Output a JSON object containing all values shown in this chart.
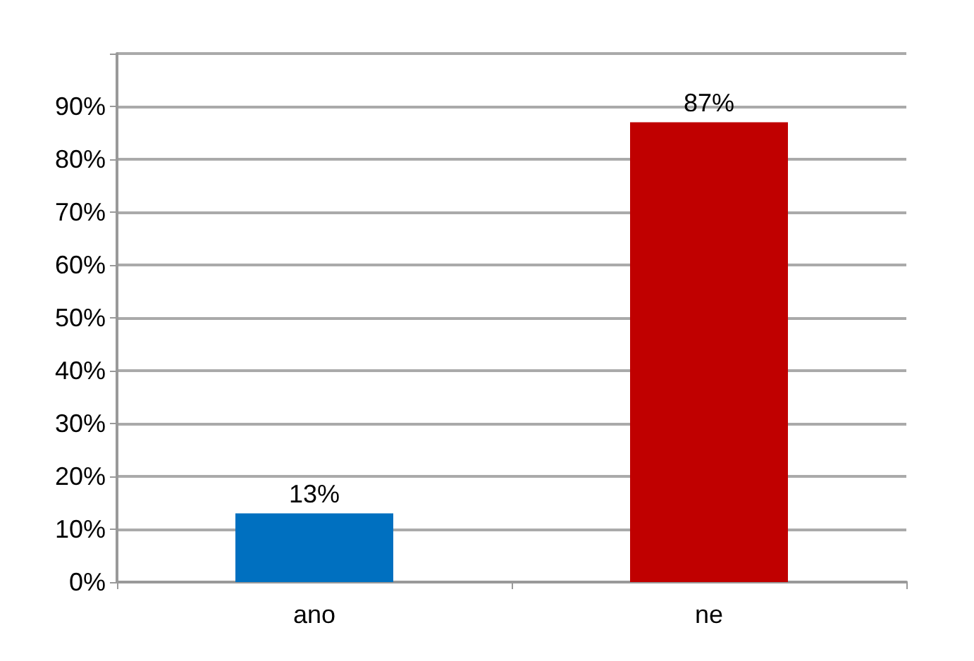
{
  "chart_data": {
    "type": "bar",
    "categories": [
      "ano",
      "ne"
    ],
    "values": [
      13,
      87
    ],
    "colors": [
      "#0070c0",
      "#c00000"
    ],
    "value_labels": [
      "13%",
      "87%"
    ],
    "ylim": [
      0,
      100
    ],
    "yticks": [
      {
        "value": 0,
        "label": "0%"
      },
      {
        "value": 10,
        "label": "10%"
      },
      {
        "value": 20,
        "label": "20%"
      },
      {
        "value": 30,
        "label": "30%"
      },
      {
        "value": 40,
        "label": "40%"
      },
      {
        "value": 50,
        "label": "50%"
      },
      {
        "value": 60,
        "label": "60%"
      },
      {
        "value": 70,
        "label": "70%"
      },
      {
        "value": 80,
        "label": "80%"
      },
      {
        "value": 90,
        "label": "90%"
      },
      {
        "value": 100,
        "label": null
      }
    ],
    "grid": "y"
  }
}
